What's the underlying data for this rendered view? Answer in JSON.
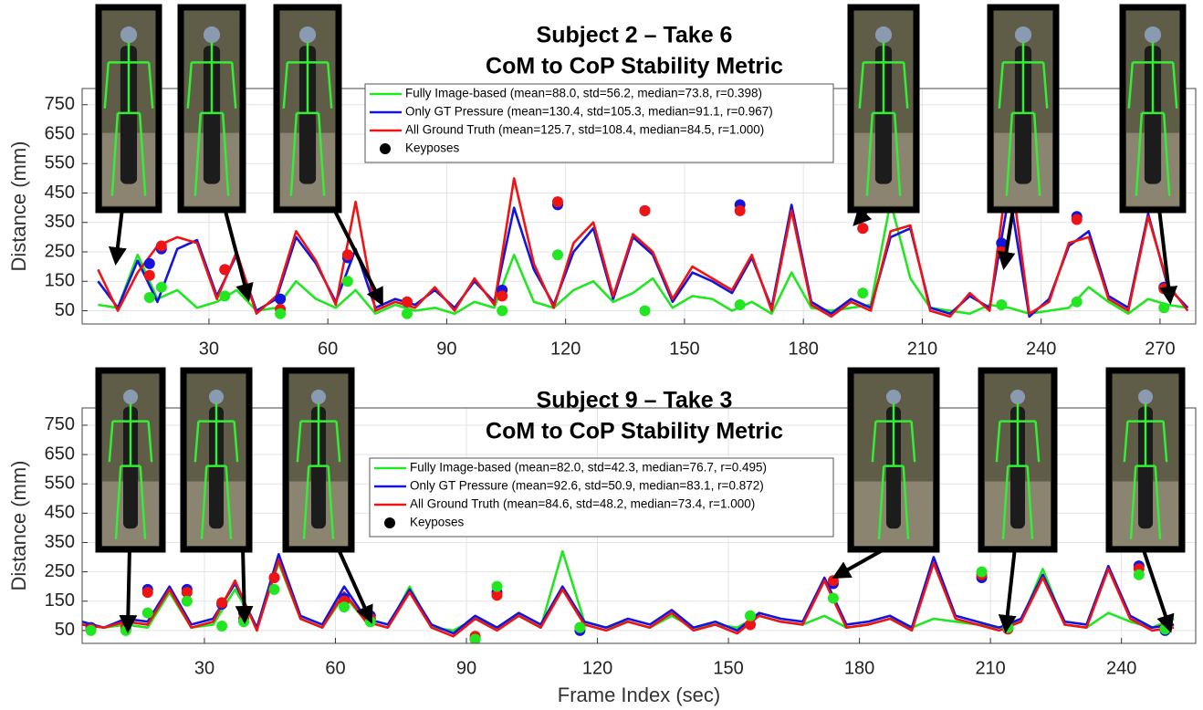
{
  "chart_data": [
    {
      "type": "line",
      "title": "Subject 2 – Take 6",
      "subtitle": "CoM to CoP Stability Metric",
      "ylabel": "Distance (mm)",
      "xlim": [
        -2,
        279
      ],
      "ylim": [
        5,
        805
      ],
      "xticks": [
        30,
        60,
        90,
        120,
        150,
        180,
        210,
        240,
        270
      ],
      "yticks": [
        50,
        150,
        250,
        350,
        450,
        550,
        650,
        750
      ],
      "grid": true,
      "x": [
        2,
        7,
        12,
        17,
        22,
        27,
        32,
        37,
        42,
        47,
        52,
        57,
        62,
        67,
        72,
        77,
        82,
        87,
        92,
        97,
        102,
        107,
        112,
        117,
        122,
        127,
        132,
        137,
        142,
        147,
        152,
        157,
        162,
        167,
        172,
        177,
        182,
        187,
        192,
        197,
        202,
        207,
        212,
        217,
        222,
        227,
        232,
        237,
        242,
        247,
        252,
        257,
        262,
        267,
        272,
        277
      ],
      "series": [
        {
          "name": "Fully Image-based (mean=88.0, std=56.2, median=73.8, r=0.398)",
          "color": "#22e622",
          "values": [
            70,
            60,
            240,
            90,
            120,
            60,
            80,
            120,
            50,
            60,
            150,
            90,
            60,
            120,
            40,
            70,
            50,
            60,
            40,
            80,
            60,
            240,
            80,
            60,
            120,
            150,
            80,
            110,
            160,
            60,
            100,
            90,
            50,
            80,
            40,
            180,
            60,
            50,
            60,
            70,
            420,
            160,
            60,
            50,
            40,
            70,
            60,
            40,
            50,
            60,
            130,
            80,
            40,
            90,
            70,
            60
          ],
          "keypose_values": [
            95,
            130,
            100,
            40,
            150,
            40,
            50,
            240,
            50,
            70,
            110,
            70,
            80,
            60
          ]
        },
        {
          "name": "Only GT Pressure (mean=130.4, std=105.3, median=91.1, r=0.967)",
          "color": "#1414dc",
          "values": [
            150,
            60,
            220,
            80,
            260,
            290,
            100,
            240,
            50,
            90,
            300,
            210,
            80,
            260,
            60,
            90,
            70,
            120,
            60,
            150,
            80,
            400,
            190,
            70,
            250,
            330,
            90,
            300,
            240,
            80,
            180,
            150,
            110,
            230,
            60,
            410,
            80,
            40,
            90,
            60,
            300,
            330,
            60,
            40,
            100,
            60,
            450,
            30,
            90,
            270,
            320,
            100,
            60,
            380,
            130,
            60
          ],
          "keypose_values": [
            210,
            260,
            190,
            90,
            230,
            80,
            120,
            410,
            390,
            410,
            330,
            280,
            370,
            130
          ]
        },
        {
          "name": "All Ground Truth (mean=125.7, std=108.4, median=84.5, r=1.000)",
          "color": "#ee1414",
          "values": [
            190,
            50,
            180,
            270,
            300,
            280,
            90,
            250,
            40,
            100,
            320,
            220,
            70,
            420,
            50,
            80,
            60,
            130,
            50,
            160,
            70,
            500,
            210,
            60,
            280,
            350,
            100,
            310,
            250,
            90,
            200,
            160,
            120,
            240,
            50,
            390,
            70,
            30,
            80,
            50,
            320,
            340,
            50,
            30,
            110,
            50,
            560,
            40,
            80,
            280,
            300,
            90,
            50,
            370,
            140,
            50
          ],
          "keypose_values": [
            170,
            270,
            190,
            55,
            240,
            80,
            100,
            420,
            390,
            390,
            330,
            250,
            360,
            125
          ]
        }
      ],
      "keypose_name": "Keyposes",
      "keypose_x": [
        15,
        18,
        34,
        48,
        65,
        80,
        104,
        118,
        140,
        164,
        195,
        230,
        249,
        271
      ]
    },
    {
      "type": "line",
      "title": "Subject 9 – Take 3",
      "subtitle": "CoM to CoP Stability Metric",
      "ylabel": "Distance (mm)",
      "xlabel": "Frame Index (sec)",
      "xlim": [
        2,
        257
      ],
      "ylim": [
        6,
        809
      ],
      "xticks": [
        30,
        60,
        90,
        120,
        150,
        180,
        210,
        240
      ],
      "yticks": [
        50,
        150,
        250,
        350,
        450,
        550,
        650,
        750
      ],
      "grid": true,
      "x": [
        2,
        7,
        12,
        17,
        22,
        27,
        32,
        37,
        42,
        47,
        52,
        57,
        62,
        67,
        72,
        77,
        82,
        87,
        92,
        97,
        102,
        107,
        112,
        117,
        122,
        127,
        132,
        137,
        142,
        147,
        152,
        157,
        162,
        167,
        172,
        177,
        182,
        187,
        192,
        197,
        202,
        207,
        212,
        217,
        222,
        227,
        232,
        237,
        242,
        247,
        252
      ],
      "series": [
        {
          "name": "Fully Image-based (mean=82.0, std=42.3, median=76.7, r=0.495)",
          "color": "#22e622",
          "values": [
            70,
            60,
            70,
            60,
            180,
            60,
            70,
            190,
            60,
            280,
            90,
            60,
            170,
            80,
            60,
            200,
            60,
            50,
            90,
            60,
            100,
            60,
            320,
            80,
            60,
            80,
            60,
            100,
            60,
            70,
            60,
            100,
            80,
            70,
            100,
            60,
            70,
            90,
            60,
            90,
            80,
            70,
            60,
            80,
            260,
            70,
            60,
            110,
            80,
            60,
            90
          ],
          "keypose_values": [
            50,
            50,
            110,
            150,
            65,
            80,
            190,
            130,
            80,
            20,
            200,
            60,
            100,
            160,
            250,
            60,
            240,
            55
          ]
        },
        {
          "name": "Only GT Pressure (mean=92.6, std=50.9, median=83.1, r=0.872)",
          "color": "#1414dc",
          "values": [
            80,
            60,
            90,
            80,
            200,
            70,
            90,
            210,
            60,
            310,
            100,
            70,
            200,
            90,
            70,
            190,
            70,
            40,
            100,
            60,
            110,
            70,
            200,
            80,
            60,
            90,
            70,
            120,
            60,
            80,
            50,
            110,
            90,
            80,
            230,
            70,
            80,
            100,
            60,
            300,
            100,
            80,
            60,
            90,
            240,
            80,
            70,
            270,
            100,
            60,
            70
          ],
          "keypose_values": [
            60,
            55,
            190,
            190,
            140,
            110,
            230,
            160,
            100,
            20,
            180,
            50,
            70,
            210,
            230,
            60,
            270,
            50
          ]
        },
        {
          "name": "All Ground Truth (mean=84.6, std=48.2, median=73.4, r=1.000)",
          "color": "#ee1414",
          "values": [
            70,
            60,
            80,
            70,
            190,
            60,
            80,
            220,
            50,
            290,
            90,
            60,
            180,
            80,
            60,
            180,
            60,
            30,
            90,
            50,
            100,
            60,
            190,
            70,
            50,
            80,
            60,
            110,
            50,
            70,
            40,
            100,
            80,
            70,
            220,
            60,
            70,
            90,
            50,
            280,
            90,
            70,
            50,
            80,
            230,
            70,
            60,
            260,
            90,
            50,
            60
          ],
          "keypose_values": [
            55,
            60,
            180,
            180,
            145,
            90,
            230,
            150,
            90,
            30,
            170,
            60,
            70,
            220,
            240,
            55,
            260,
            60
          ]
        }
      ],
      "keypose_name": "Keyposes",
      "keypose_x": [
        4,
        12,
        17,
        26,
        34,
        39,
        46,
        62,
        68,
        92,
        97,
        116,
        155,
        174,
        208,
        214,
        244,
        250
      ]
    }
  ]
}
